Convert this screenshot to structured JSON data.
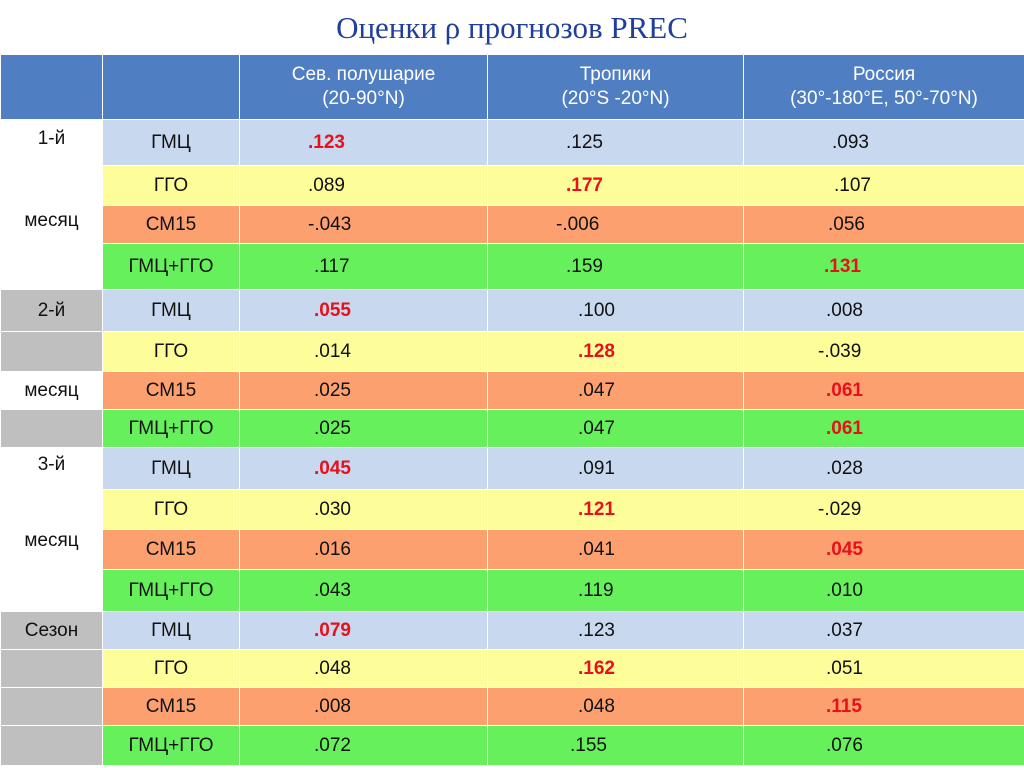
{
  "title": "Оценки ρ прогнозов PREC",
  "header": {
    "col1": "",
    "col2": "",
    "col3_line1": "Сев. полушарие",
    "col3_line2": "(20-90°N)",
    "col4_line1": "Тропики",
    "col4_line2": "(20°S -20°N)",
    "col5_line1": "Россия",
    "col5_line2": "(30°-180°E, 50°-70°N)"
  },
  "colors": {
    "header_bg": "#4f7fc2",
    "title": "#1f3f9a",
    "blue_row": "#c8d8ef",
    "yellow_row": "#fdfd9a",
    "orange_row": "#fca070",
    "green_row": "#66f15c",
    "gray_cell": "#bfbfbf",
    "highlight": "#e8101a"
  },
  "groups": [
    {
      "period_line1": "1-й",
      "period_line2": "месяц",
      "rows": [
        {
          "model": "ГМЦ",
          "nh": ".123",
          "tr": ".125",
          "ru": ".093",
          "best": "nh"
        },
        {
          "model": "ГГО",
          "nh": ".089",
          "tr": ".177",
          "ru": ".107",
          "best": "tr"
        },
        {
          "model": "СМ15",
          "nh": "-.043",
          "tr": "-.006",
          "ru": ".056",
          "best": ""
        },
        {
          "model": "ГМЦ+ГГО",
          "nh": ".117",
          "tr": ".159",
          "ru": ".131",
          "best": "ru"
        }
      ]
    },
    {
      "period_line1": "2-й",
      "period_line2": "месяц",
      "rows": [
        {
          "model": "ГМЦ",
          "nh": ".055",
          "tr": ".100",
          "ru": ".008",
          "best": "nh"
        },
        {
          "model": "ГГО",
          "nh": ".014",
          "tr": ".128",
          "ru": "-.039",
          "best": "tr"
        },
        {
          "model": "СМ15",
          "nh": ".025",
          "tr": ".047",
          "ru": ".061",
          "best": "ru"
        },
        {
          "model": "ГМЦ+ГГО",
          "nh": ".025",
          "tr": ".047",
          "ru": ".061",
          "best": "ru"
        }
      ]
    },
    {
      "period_line1": "3-й",
      "period_line2": "месяц",
      "rows": [
        {
          "model": "ГМЦ",
          "nh": ".045",
          "tr": ".091",
          "ru": ".028",
          "best": "nh"
        },
        {
          "model": "ГГО",
          "nh": ".030",
          "tr": ".121",
          "ru": "-.029",
          "best": "tr"
        },
        {
          "model": "СМ15",
          "nh": ".016",
          "tr": ".041",
          "ru": ".045",
          "best": "ru"
        },
        {
          "model": "ГМЦ+ГГО",
          "nh": ".043",
          "tr": ".119",
          "ru": ".010",
          "best": ""
        }
      ]
    },
    {
      "period_line1": "Сезон",
      "period_line2": "",
      "rows": [
        {
          "model": "ГМЦ",
          "nh": ".079",
          "tr": ".123",
          "ru": ".037",
          "best": "nh"
        },
        {
          "model": "ГГО",
          "nh": ".048",
          "tr": ".162",
          "ru": ".051",
          "best": "tr"
        },
        {
          "model": "СМ15",
          "nh": ".008",
          "tr": ".048",
          "ru": ".115",
          "best": "ru"
        },
        {
          "model": "ГМЦ+ГГО",
          "nh": ".072",
          "tr": ".155",
          "ru": ".076",
          "best": ""
        }
      ]
    }
  ]
}
